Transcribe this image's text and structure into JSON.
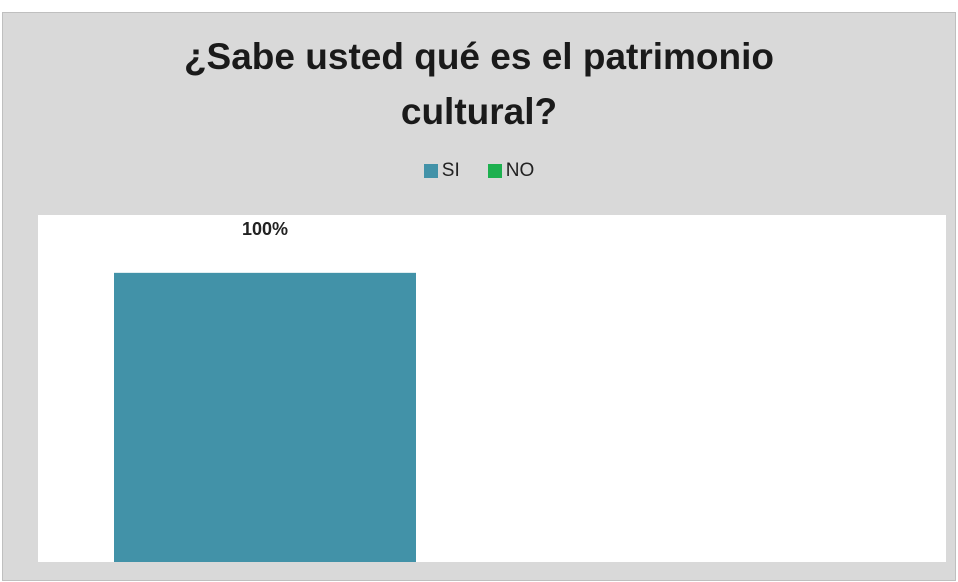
{
  "chart_data": {
    "type": "bar",
    "title": "¿Sabe usted qué es el patrimonio cultural?",
    "categories": [
      "SI",
      "NO"
    ],
    "values": [
      100,
      0
    ],
    "value_labels": [
      "100%",
      ""
    ],
    "colors": [
      "#4292a8",
      "#1db04f"
    ],
    "ylim": [
      0,
      120
    ],
    "grid": false,
    "legend": {
      "position": "top",
      "entries": [
        {
          "label": "SI",
          "color": "#4292a8"
        },
        {
          "label": "NO",
          "color": "#1db04f"
        }
      ]
    }
  }
}
